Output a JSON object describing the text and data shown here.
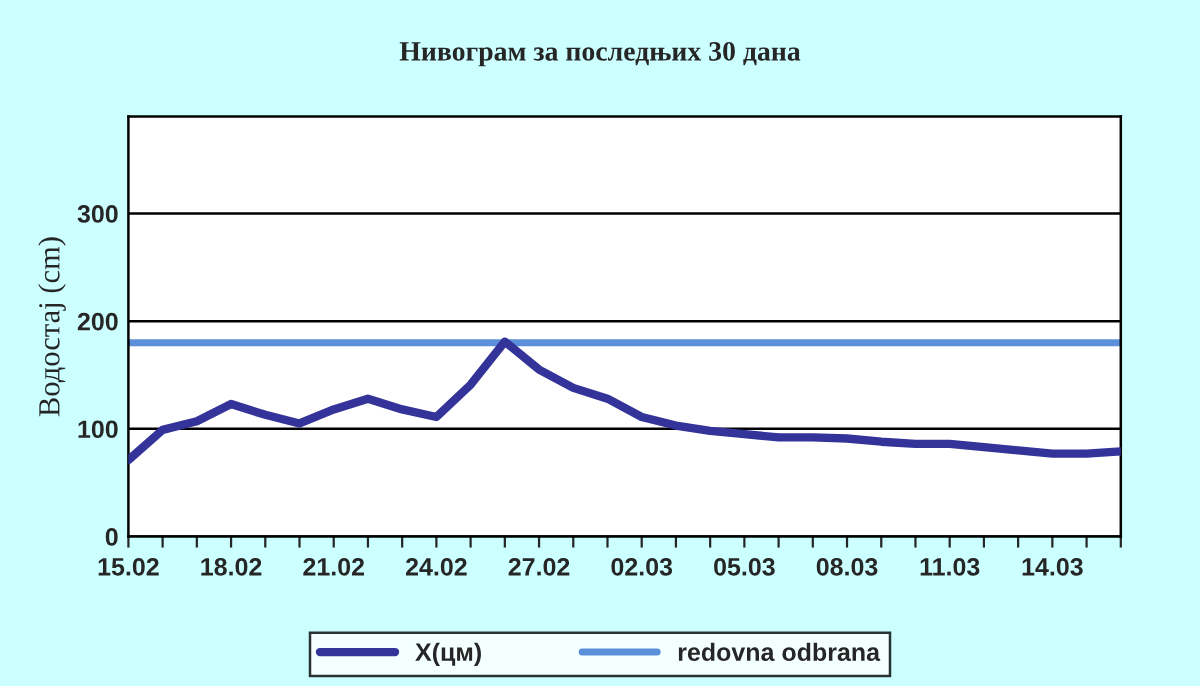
{
  "chart_data": {
    "type": "line",
    "title": "Нивограм за последњих 30 дана",
    "ylabel": "Водостај (cm)",
    "categories": [
      "15.02",
      null,
      null,
      "18.02",
      null,
      null,
      "21.02",
      null,
      null,
      "24.02",
      null,
      null,
      "27.02",
      null,
      null,
      "02.03",
      null,
      null,
      "05.03",
      null,
      null,
      "08.03",
      null,
      null,
      "11.03",
      null,
      null,
      "14.03",
      null,
      null
    ],
    "series": [
      {
        "name": "X(цм)",
        "color": "#333399",
        "values": [
          71,
          99,
          107,
          123,
          113,
          105,
          118,
          128,
          118,
          111,
          141,
          181,
          155,
          138,
          128,
          111,
          103,
          98,
          95,
          92,
          92,
          91,
          88,
          86,
          86,
          83,
          80,
          77,
          77,
          79
        ]
      }
    ],
    "ref_lines": [
      {
        "axis": "y",
        "value": 180,
        "label": "redovna odbrana",
        "color": "#5b8fd9"
      }
    ],
    "ylim": [
      0,
      390
    ],
    "yticks": [
      0,
      100,
      200,
      300
    ],
    "grid": "y",
    "legend": "bottom",
    "marker": "none",
    "line_style": "solid"
  }
}
